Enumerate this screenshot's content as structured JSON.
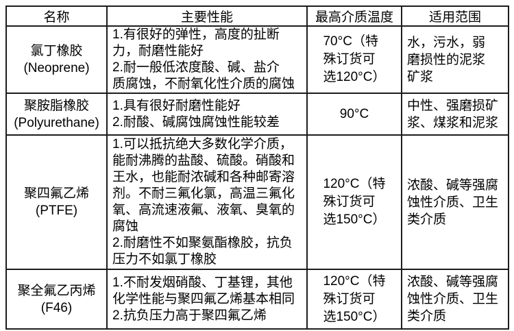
{
  "table": {
    "headers": {
      "name": "名称",
      "performance": "主要性能",
      "max_temp": "最高介质温度",
      "application": "适用范围"
    },
    "rows": [
      {
        "name": "氯丁橡胶\n(Neoprene)",
        "performance": "1.有很好的弹性，高度的扯断\n力，耐磨性能好\n2.耐一般低浓度酸、碱、盐介\n质腐蚀，不耐氧化性介质的腐蚀",
        "max_temp": "70°C（特\n殊订货可\n选120°C）",
        "application": "水，污水，弱\n磨损性的泥浆\n矿浆"
      },
      {
        "name": "聚胺脂橡胶\n(Polyurethane)",
        "performance": "1.具有很好耐磨性能好\n2.耐酸、碱腐蚀腐蚀性能较差",
        "max_temp": "90°C",
        "application": "中性、强磨损矿\n浆、煤浆和泥浆"
      },
      {
        "name": "聚四氟乙烯\n(PTFE)",
        "performance": "1.可以抵抗绝大多数化学介质，\n能耐沸腾的盐酸、硫酸。硝酸和\n王水，也能耐浓碱和各种邮寄溶\n剂。不耐三氟化氯，高温三氟化\n氧、高流速液氟、液氧、臭氧的\n腐蚀\n2.耐磨性不如聚氨酯橡胶，抗负\n压力不如氯丁橡胶",
        "max_temp": "120°C（特\n殊订货可\n选150°C）",
        "application": "浓酸、碱等强腐\n蚀性介质、卫生\n类介质"
      },
      {
        "name": "聚全氟乙丙烯\n(F46)",
        "performance": "1.不耐发烟硝酸、丁基锂，其他\n化学性能与聚四氟乙烯基本相同\n2.抗负压力高于聚四氟乙烯",
        "max_temp": "120°C（特\n殊订货可\n选150°C）",
        "application": "浓酸、碱等强腐\n蚀性介质、卫生\n类介质"
      }
    ]
  }
}
